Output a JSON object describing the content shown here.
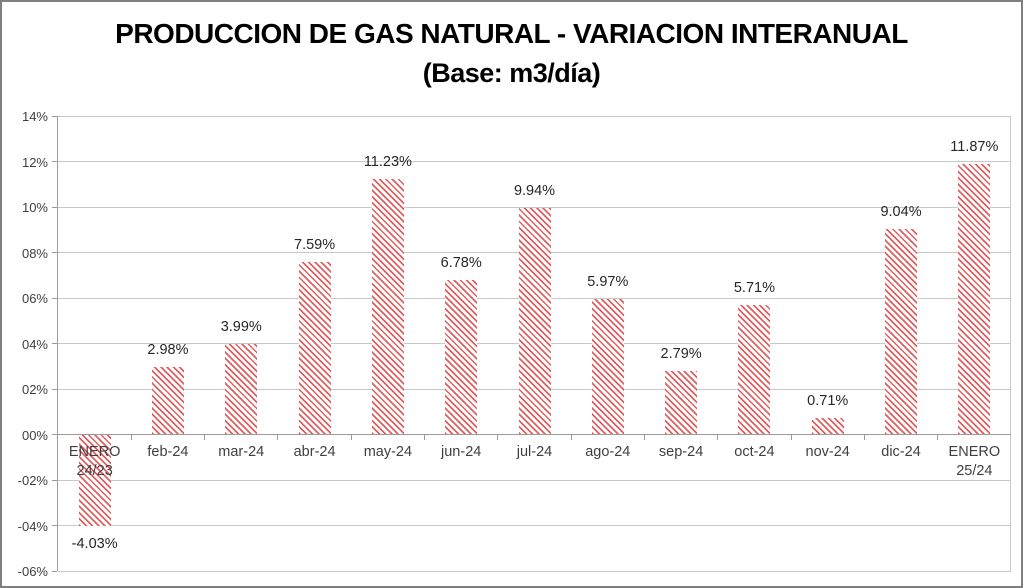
{
  "window": {
    "background": "#ffffff",
    "border_color": "#7f7f7f"
  },
  "chart_data": {
    "type": "bar",
    "title": "PRODUCCION DE GAS NATURAL - VARIACION INTERANUAL",
    "subtitle": "(Base: m3/día)",
    "categories": [
      [
        "ENERO",
        "24/23"
      ],
      [
        "feb-24"
      ],
      [
        "mar-24"
      ],
      [
        "abr-24"
      ],
      [
        "may-24"
      ],
      [
        "jun-24"
      ],
      [
        "jul-24"
      ],
      [
        "ago-24"
      ],
      [
        "sep-24"
      ],
      [
        "oct-24"
      ],
      [
        "nov-24"
      ],
      [
        "dic-24"
      ],
      [
        "ENERO",
        "25/24"
      ]
    ],
    "values": [
      -4.03,
      2.98,
      3.99,
      7.59,
      11.23,
      6.78,
      9.94,
      5.97,
      2.79,
      5.71,
      0.71,
      9.04,
      11.87
    ],
    "value_labels": [
      "-4.03%",
      "2.98%",
      "3.99%",
      "7.59%",
      "11.23%",
      "6.78%",
      "9.94%",
      "5.97%",
      "2.79%",
      "5.71%",
      "0.71%",
      "9.04%",
      "11.87%"
    ],
    "yticks": [
      {
        "label": "14%",
        "value": 14
      },
      {
        "label": "12%",
        "value": 12
      },
      {
        "label": "10%",
        "value": 10
      },
      {
        "label": "08%",
        "value": 8
      },
      {
        "label": "06%",
        "value": 6
      },
      {
        "label": "04%",
        "value": 4
      },
      {
        "label": "02%",
        "value": 2
      },
      {
        "label": "00%",
        "value": 0
      },
      {
        "label": "-02%",
        "value": -2
      },
      {
        "label": "-04%",
        "value": -4
      },
      {
        "label": "-06%",
        "value": -6
      }
    ],
    "ylim": [
      -6,
      14
    ],
    "xlabel": "",
    "ylabel": "",
    "grid": true,
    "legend": false,
    "bar_fill_style": "diagonal-hatch",
    "bar_stripe_color": "#e06060",
    "bar_background_color": "#ffffff",
    "grid_color": "#c9c9c9",
    "axis_color": "#9b9b9b",
    "tick_label_color": "#3f3f3f",
    "value_label_color": "#262626",
    "title_color": "#000000"
  }
}
